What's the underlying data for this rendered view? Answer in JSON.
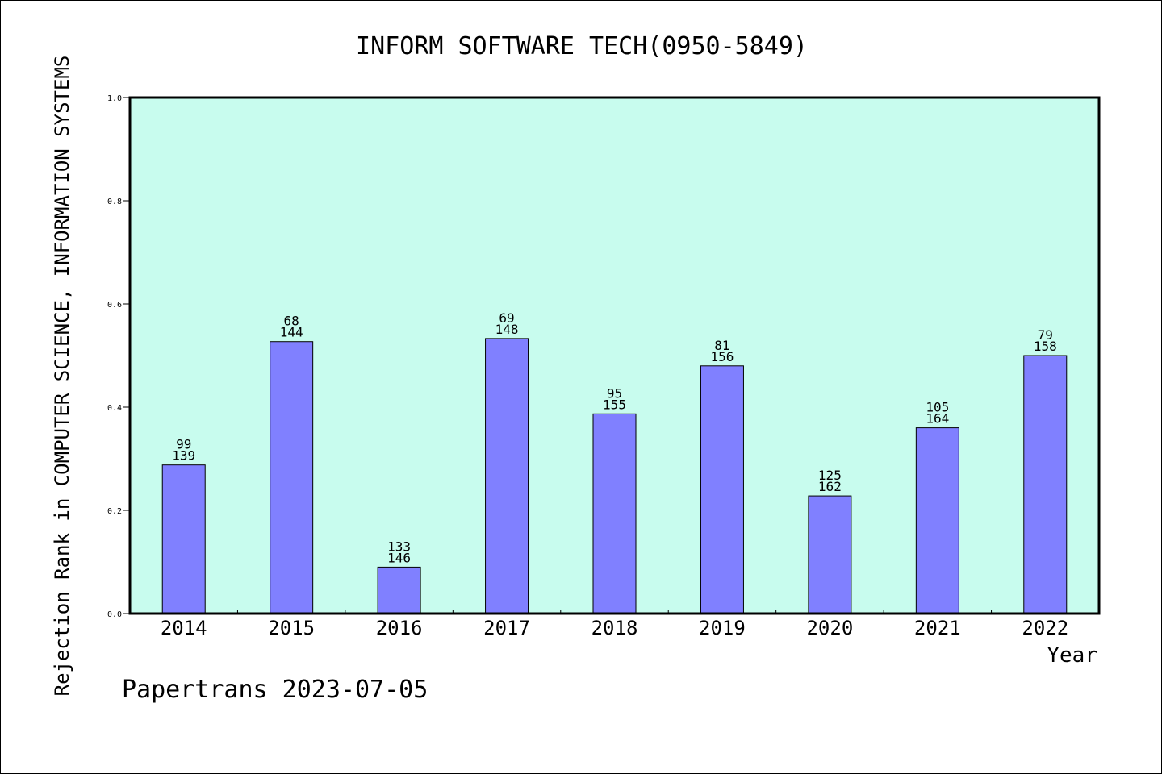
{
  "chart_data": {
    "type": "bar",
    "title": "INFORM SOFTWARE TECH(0950-5849)",
    "xlabel": "Year",
    "ylabel": "Rejection Rank in COMPUTER SCIENCE, INFORMATION SYSTEMS",
    "ylim": [
      0,
      1.0
    ],
    "yticks": [
      "0.0",
      "0.2",
      "0.4",
      "0.6",
      "0.8",
      "1.0"
    ],
    "categories": [
      "2014",
      "2015",
      "2016",
      "2017",
      "2018",
      "2019",
      "2020",
      "2021",
      "2022"
    ],
    "values": [
      0.288,
      0.527,
      0.09,
      0.533,
      0.387,
      0.48,
      0.228,
      0.36,
      0.5
    ],
    "labels_top": [
      "99",
      "68",
      "133",
      "69",
      "95",
      "81",
      "125",
      "105",
      "79"
    ],
    "labels_bottom": [
      "139",
      "144",
      "146",
      "148",
      "155",
      "156",
      "162",
      "164",
      "158"
    ],
    "grid": false,
    "colors": {
      "bar": "#8080ff",
      "plot_bg": "#c8fcee"
    }
  },
  "footer": "Papertrans 2023-07-05"
}
